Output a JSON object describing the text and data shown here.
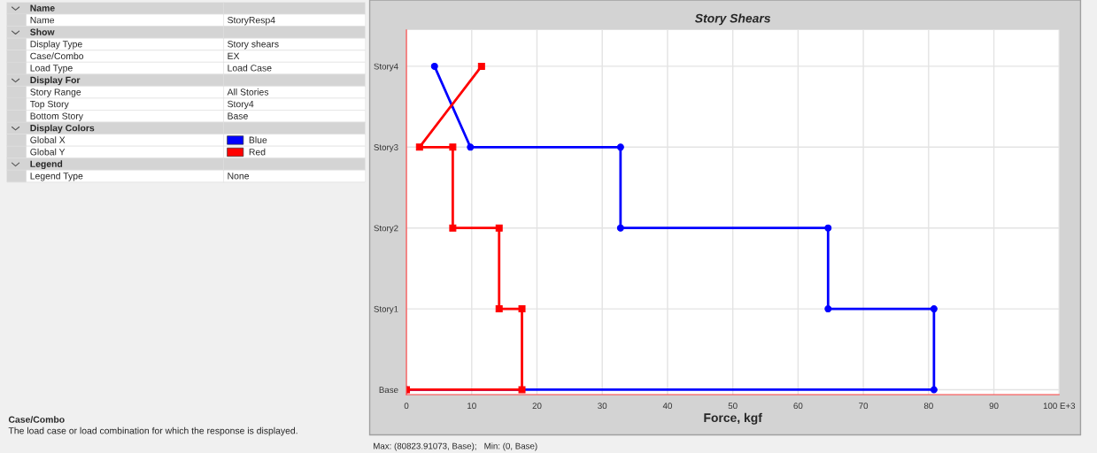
{
  "chart_data": [
    {
      "type": "other",
      "y_categories": [
        "Name",
        "Name",
        "Show",
        "Display Type",
        "Case/Combo",
        "Load Type",
        "Display For",
        "Story Range",
        "Top Story",
        "Bottom Story",
        "Display Colors",
        "Global X",
        "Global Y",
        "Legend",
        "Legend Type"
      ],
      "y2_categories": [
        null,
        "StoryResp4",
        null,
        "Story shears",
        "EX",
        "Load Case",
        null,
        "All Stories",
        "Story4",
        "Base",
        null,
        "Blue",
        "Red",
        null,
        "None"
      ],
      "colors": [
        null,
        null,
        null,
        null,
        null,
        null,
        null,
        null,
        null,
        null,
        null,
        "#0000ff",
        "#ff0000",
        null,
        null
      ],
      "annotations": [
        "Case/Combo",
        "The load case or load combination for which the response is displayed."
      ]
    },
    {
      "type": "line",
      "title": "Story Shears",
      "xlabel": "Force, kgf",
      "xlim": [
        0,
        100
      ],
      "xticks": [
        0,
        10,
        20,
        30,
        40,
        50,
        60,
        70,
        80,
        90,
        {
          "value": 100,
          "label": "100 E+3"
        }
      ],
      "orientation": "horizontal",
      "categories": [
        "Story4",
        "Story3",
        "Story2",
        "Story1",
        "Base"
      ],
      "grid": true,
      "line_style": "solid",
      "series": [
        {
          "color": "#0000ff",
          "marker": "circle",
          "x": [
            "Base",
            "Base",
            "Story1",
            "Story1",
            "Story2",
            "Story2",
            "Story3",
            "Story3",
            "Story4"
          ],
          "values": [
            0,
            80.82,
            80.82,
            64.6,
            64.6,
            32.8,
            32.8,
            9.8,
            4.3
          ]
        },
        {
          "color": "#ff0000",
          "marker": "square",
          "x": [
            "Base",
            "Base",
            "Story1",
            "Story1",
            "Story2",
            "Story2",
            "Story3",
            "Story3",
            "Story4"
          ],
          "values": [
            0,
            17.7,
            17.7,
            14.2,
            14.2,
            7.1,
            7.1,
            2.0,
            11.5
          ]
        }
      ],
      "annotations": [
        "Max: (80823.91073, Base);   Min: (0, Base)"
      ]
    }
  ]
}
